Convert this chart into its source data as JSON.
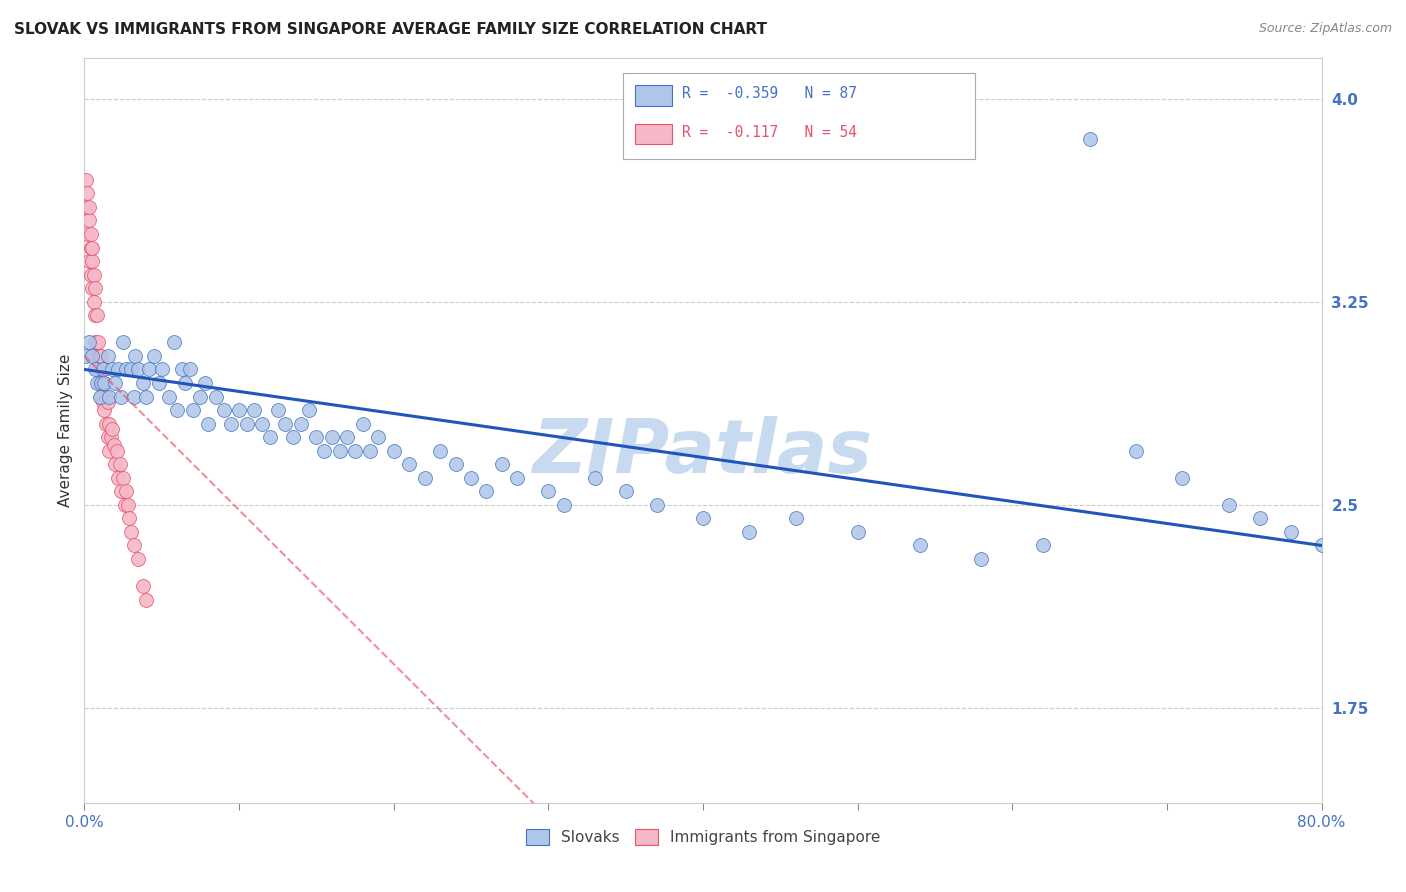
{
  "title": "SLOVAK VS IMMIGRANTS FROM SINGAPORE AVERAGE FAMILY SIZE CORRELATION CHART",
  "source_text": "Source: ZipAtlas.com",
  "ylabel": "Average Family Size",
  "xlim": [
    0.0,
    0.8
  ],
  "ylim": [
    1.4,
    4.15
  ],
  "yticks_right": [
    1.75,
    2.5,
    3.25,
    4.0
  ],
  "right_tick_color": "#4472c4",
  "legend_entries": [
    {
      "label": "R =  -0.359   N = 87",
      "facecolor": "#aec6e8",
      "edgecolor": "#4472c4",
      "text_color": "#4472c4"
    },
    {
      "label": "R =  -0.117   N = 54",
      "facecolor": "#f4b8c8",
      "edgecolor": "#e8526a",
      "text_color": "#e8526a"
    }
  ],
  "slovaks_scatter_color": "#aec6e8",
  "slovaks_edge_color": "#4472c4",
  "singapore_scatter_color": "#f4b8c8",
  "singapore_edge_color": "#e8526a",
  "trend_blue_color": "#2255bb",
  "trend_pink_color": "#e8526a",
  "watermark_text": "ZIPatlas",
  "watermark_color": "#c8daf0",
  "background_color": "#ffffff",
  "grid_color": "#cccccc",
  "bottom_legend": [
    "Slovaks",
    "Immigrants from Singapore"
  ],
  "slovaks_x": [
    0.001,
    0.003,
    0.005,
    0.007,
    0.008,
    0.01,
    0.011,
    0.012,
    0.013,
    0.015,
    0.016,
    0.018,
    0.02,
    0.022,
    0.024,
    0.025,
    0.027,
    0.03,
    0.032,
    0.033,
    0.035,
    0.038,
    0.04,
    0.042,
    0.045,
    0.048,
    0.05,
    0.055,
    0.058,
    0.06,
    0.063,
    0.065,
    0.068,
    0.07,
    0.075,
    0.078,
    0.08,
    0.085,
    0.09,
    0.095,
    0.1,
    0.105,
    0.11,
    0.115,
    0.12,
    0.125,
    0.13,
    0.135,
    0.14,
    0.145,
    0.15,
    0.155,
    0.16,
    0.165,
    0.17,
    0.175,
    0.18,
    0.185,
    0.19,
    0.2,
    0.21,
    0.22,
    0.23,
    0.24,
    0.25,
    0.26,
    0.27,
    0.28,
    0.3,
    0.31,
    0.33,
    0.35,
    0.37,
    0.4,
    0.43,
    0.46,
    0.5,
    0.54,
    0.58,
    0.62,
    0.65,
    0.68,
    0.71,
    0.74,
    0.76,
    0.78,
    0.8
  ],
  "slovaks_y": [
    3.05,
    3.1,
    3.05,
    3.0,
    2.95,
    2.9,
    2.95,
    3.0,
    2.95,
    3.05,
    2.9,
    3.0,
    2.95,
    3.0,
    2.9,
    3.1,
    3.0,
    3.0,
    2.9,
    3.05,
    3.0,
    2.95,
    2.9,
    3.0,
    3.05,
    2.95,
    3.0,
    2.9,
    3.1,
    2.85,
    3.0,
    2.95,
    3.0,
    2.85,
    2.9,
    2.95,
    2.8,
    2.9,
    2.85,
    2.8,
    2.85,
    2.8,
    2.85,
    2.8,
    2.75,
    2.85,
    2.8,
    2.75,
    2.8,
    2.85,
    2.75,
    2.7,
    2.75,
    2.7,
    2.75,
    2.7,
    2.8,
    2.7,
    2.75,
    2.7,
    2.65,
    2.6,
    2.7,
    2.65,
    2.6,
    2.55,
    2.65,
    2.6,
    2.55,
    2.5,
    2.6,
    2.55,
    2.5,
    2.45,
    2.4,
    2.45,
    2.4,
    2.35,
    2.3,
    2.35,
    3.85,
    2.7,
    2.6,
    2.5,
    2.45,
    2.4,
    2.35
  ],
  "singapore_x": [
    0.001,
    0.001,
    0.002,
    0.002,
    0.003,
    0.003,
    0.003,
    0.004,
    0.004,
    0.004,
    0.005,
    0.005,
    0.005,
    0.006,
    0.006,
    0.007,
    0.007,
    0.007,
    0.008,
    0.008,
    0.009,
    0.009,
    0.01,
    0.01,
    0.011,
    0.011,
    0.012,
    0.012,
    0.013,
    0.013,
    0.014,
    0.014,
    0.015,
    0.015,
    0.016,
    0.016,
    0.017,
    0.018,
    0.019,
    0.02,
    0.021,
    0.022,
    0.023,
    0.024,
    0.025,
    0.026,
    0.027,
    0.028,
    0.029,
    0.03,
    0.032,
    0.035,
    0.038,
    0.04
  ],
  "singapore_y": [
    3.6,
    3.7,
    3.5,
    3.65,
    3.55,
    3.4,
    3.6,
    3.45,
    3.5,
    3.35,
    3.4,
    3.3,
    3.45,
    3.25,
    3.35,
    3.2,
    3.3,
    3.1,
    3.2,
    3.05,
    3.1,
    3.0,
    3.05,
    2.95,
    3.05,
    2.9,
    3.0,
    2.88,
    2.95,
    2.85,
    2.9,
    2.8,
    2.88,
    2.75,
    2.8,
    2.7,
    2.75,
    2.78,
    2.72,
    2.65,
    2.7,
    2.6,
    2.65,
    2.55,
    2.6,
    2.5,
    2.55,
    2.5,
    2.45,
    2.4,
    2.35,
    2.3,
    2.2,
    2.15
  ]
}
